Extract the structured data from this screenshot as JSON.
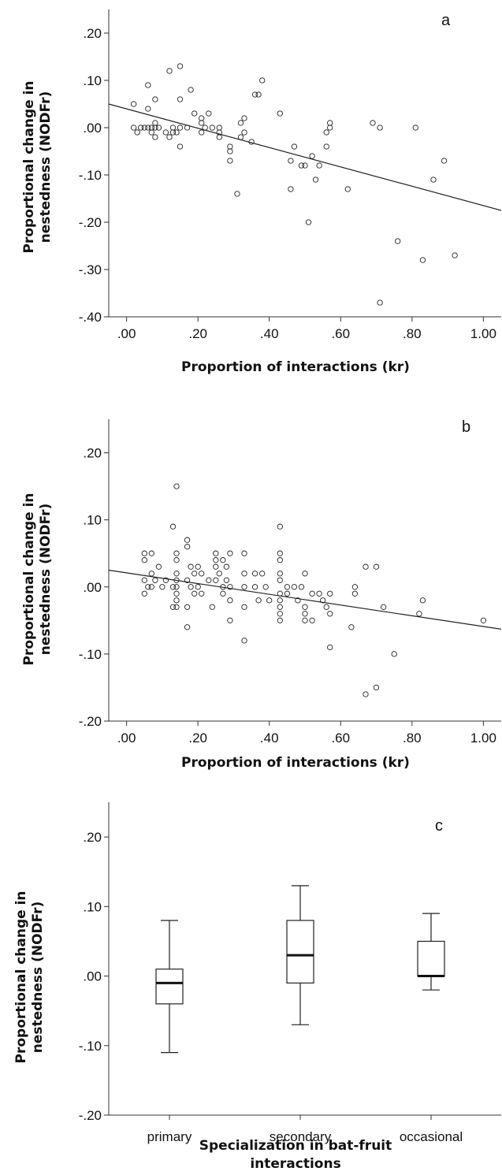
{
  "chart_data": [
    {
      "type": "scatter",
      "panel": "a",
      "xlabel": "Proportion of interactions (kr)",
      "ylabel": [
        "Proportional change in",
        "nestedness (NODFr)"
      ],
      "xlim": [
        -0.05,
        1.05
      ],
      "ylim": [
        -0.4,
        0.25
      ],
      "x_ticks": [
        {
          "v": 0.0,
          "label": ".00"
        },
        {
          "v": 0.2,
          "label": ".20"
        },
        {
          "v": 0.4,
          "label": ".40"
        },
        {
          "v": 0.6,
          "label": ".60"
        },
        {
          "v": 0.8,
          "label": ".80"
        },
        {
          "v": 1.0,
          "label": "1.00"
        }
      ],
      "y_ticks": [
        {
          "v": 0.2,
          "label": ".20"
        },
        {
          "v": 0.1,
          "label": ".10"
        },
        {
          "v": 0.0,
          "label": ".00"
        },
        {
          "v": -0.1,
          "label": "-.10"
        },
        {
          "v": -0.2,
          "label": "-.20"
        },
        {
          "v": -0.3,
          "label": "-.30"
        },
        {
          "v": -0.4,
          "label": "-.40"
        }
      ],
      "fit_line": {
        "x": [
          -0.05,
          1.05
        ],
        "y": [
          0.05,
          -0.175
        ]
      },
      "points": [
        [
          0.02,
          0.05
        ],
        [
          0.02,
          0.0
        ],
        [
          0.03,
          -0.01
        ],
        [
          0.04,
          0.0
        ],
        [
          0.05,
          0.0
        ],
        [
          0.06,
          0.09
        ],
        [
          0.06,
          0.04
        ],
        [
          0.06,
          0.0
        ],
        [
          0.07,
          0.0
        ],
        [
          0.07,
          -0.01
        ],
        [
          0.08,
          -0.02
        ],
        [
          0.08,
          0.01
        ],
        [
          0.08,
          0.06
        ],
        [
          0.08,
          0.0
        ],
        [
          0.09,
          0.0
        ],
        [
          0.11,
          -0.01
        ],
        [
          0.12,
          0.12
        ],
        [
          0.12,
          -0.02
        ],
        [
          0.13,
          -0.01
        ],
        [
          0.13,
          0.0
        ],
        [
          0.14,
          -0.01
        ],
        [
          0.15,
          0.13
        ],
        [
          0.15,
          0.06
        ],
        [
          0.15,
          0.0
        ],
        [
          0.15,
          -0.04
        ],
        [
          0.17,
          0.0
        ],
        [
          0.18,
          0.08
        ],
        [
          0.19,
          0.03
        ],
        [
          0.21,
          0.02
        ],
        [
          0.21,
          0.01
        ],
        [
          0.21,
          -0.01
        ],
        [
          0.22,
          0.0
        ],
        [
          0.23,
          0.03
        ],
        [
          0.24,
          0.0
        ],
        [
          0.26,
          0.0
        ],
        [
          0.26,
          -0.01
        ],
        [
          0.26,
          -0.02
        ],
        [
          0.29,
          -0.04
        ],
        [
          0.29,
          -0.05
        ],
        [
          0.29,
          -0.07
        ],
        [
          0.31,
          -0.14
        ],
        [
          0.32,
          -0.02
        ],
        [
          0.32,
          0.01
        ],
        [
          0.33,
          0.02
        ],
        [
          0.33,
          -0.01
        ],
        [
          0.35,
          -0.03
        ],
        [
          0.36,
          0.07
        ],
        [
          0.37,
          0.07
        ],
        [
          0.38,
          0.1
        ],
        [
          0.43,
          0.03
        ],
        [
          0.46,
          -0.07
        ],
        [
          0.46,
          -0.13
        ],
        [
          0.47,
          -0.04
        ],
        [
          0.49,
          -0.08
        ],
        [
          0.5,
          -0.08
        ],
        [
          0.51,
          -0.2
        ],
        [
          0.52,
          -0.06
        ],
        [
          0.53,
          -0.11
        ],
        [
          0.54,
          -0.08
        ],
        [
          0.56,
          -0.04
        ],
        [
          0.56,
          -0.01
        ],
        [
          0.57,
          0.0
        ],
        [
          0.57,
          0.01
        ],
        [
          0.62,
          -0.13
        ],
        [
          0.69,
          0.01
        ],
        [
          0.71,
          0.0
        ],
        [
          0.71,
          -0.37
        ],
        [
          0.76,
          -0.24
        ],
        [
          0.81,
          0.0
        ],
        [
          0.83,
          -0.28
        ],
        [
          0.86,
          -0.11
        ],
        [
          0.89,
          -0.07
        ],
        [
          0.92,
          -0.27
        ]
      ]
    },
    {
      "type": "scatter",
      "panel": "b",
      "xlabel": "Proportion of interactions (kr)",
      "ylabel": [
        "Proportional change in",
        "nestedness (NODFr)"
      ],
      "xlim": [
        -0.05,
        1.05
      ],
      "ylim": [
        -0.2,
        0.25
      ],
      "x_ticks": [
        {
          "v": 0.0,
          "label": ".00"
        },
        {
          "v": 0.2,
          "label": ".20"
        },
        {
          "v": 0.4,
          "label": ".40"
        },
        {
          "v": 0.6,
          "label": ".60"
        },
        {
          "v": 0.8,
          "label": ".80"
        },
        {
          "v": 1.0,
          "label": "1.00"
        }
      ],
      "y_ticks": [
        {
          "v": 0.2,
          "label": ".20"
        },
        {
          "v": 0.1,
          "label": ".10"
        },
        {
          "v": 0.0,
          "label": ".00"
        },
        {
          "v": -0.1,
          "label": "-.10"
        },
        {
          "v": -0.2,
          "label": "-.20"
        }
      ],
      "fit_line": {
        "x": [
          -0.05,
          1.05
        ],
        "y": [
          0.025,
          -0.063
        ]
      },
      "points": [
        [
          0.05,
          0.05
        ],
        [
          0.05,
          0.04
        ],
        [
          0.05,
          0.01
        ],
        [
          0.05,
          -0.01
        ],
        [
          0.06,
          0.0
        ],
        [
          0.07,
          0.05
        ],
        [
          0.07,
          0.02
        ],
        [
          0.07,
          0.0
        ],
        [
          0.08,
          0.01
        ],
        [
          0.09,
          0.03
        ],
        [
          0.1,
          0.0
        ],
        [
          0.11,
          0.01
        ],
        [
          0.13,
          0.09
        ],
        [
          0.13,
          0.0
        ],
        [
          0.13,
          -0.03
        ],
        [
          0.14,
          0.15
        ],
        [
          0.14,
          0.05
        ],
        [
          0.14,
          0.04
        ],
        [
          0.14,
          0.02
        ],
        [
          0.14,
          0.01
        ],
        [
          0.14,
          0.0
        ],
        [
          0.14,
          -0.01
        ],
        [
          0.14,
          -0.02
        ],
        [
          0.14,
          -0.03
        ],
        [
          0.17,
          0.07
        ],
        [
          0.17,
          0.06
        ],
        [
          0.17,
          0.01
        ],
        [
          0.17,
          -0.03
        ],
        [
          0.17,
          -0.06
        ],
        [
          0.18,
          0.03
        ],
        [
          0.18,
          0.0
        ],
        [
          0.19,
          0.02
        ],
        [
          0.19,
          -0.01
        ],
        [
          0.2,
          0.0
        ],
        [
          0.2,
          0.03
        ],
        [
          0.21,
          0.02
        ],
        [
          0.21,
          -0.01
        ],
        [
          0.23,
          0.01
        ],
        [
          0.24,
          -0.03
        ],
        [
          0.25,
          0.05
        ],
        [
          0.25,
          0.04
        ],
        [
          0.25,
          0.03
        ],
        [
          0.25,
          0.01
        ],
        [
          0.26,
          0.02
        ],
        [
          0.27,
          0.04
        ],
        [
          0.27,
          0.0
        ],
        [
          0.27,
          -0.01
        ],
        [
          0.28,
          0.03
        ],
        [
          0.28,
          0.01
        ],
        [
          0.29,
          0.05
        ],
        [
          0.29,
          0.0
        ],
        [
          0.29,
          -0.02
        ],
        [
          0.29,
          -0.05
        ],
        [
          0.33,
          0.05
        ],
        [
          0.33,
          0.02
        ],
        [
          0.33,
          0.0
        ],
        [
          0.33,
          -0.03
        ],
        [
          0.33,
          -0.08
        ],
        [
          0.36,
          0.02
        ],
        [
          0.36,
          0.0
        ],
        [
          0.37,
          -0.02
        ],
        [
          0.38,
          0.02
        ],
        [
          0.39,
          0.0
        ],
        [
          0.4,
          -0.02
        ],
        [
          0.43,
          0.09
        ],
        [
          0.43,
          0.05
        ],
        [
          0.43,
          0.04
        ],
        [
          0.43,
          0.02
        ],
        [
          0.43,
          0.01
        ],
        [
          0.43,
          -0.01
        ],
        [
          0.43,
          -0.02
        ],
        [
          0.43,
          -0.03
        ],
        [
          0.43,
          -0.04
        ],
        [
          0.43,
          -0.05
        ],
        [
          0.45,
          0.0
        ],
        [
          0.45,
          -0.01
        ],
        [
          0.47,
          0.0
        ],
        [
          0.48,
          -0.02
        ],
        [
          0.49,
          0.0
        ],
        [
          0.5,
          0.02
        ],
        [
          0.5,
          -0.03
        ],
        [
          0.5,
          -0.04
        ],
        [
          0.5,
          -0.05
        ],
        [
          0.52,
          -0.01
        ],
        [
          0.52,
          -0.05
        ],
        [
          0.54,
          -0.01
        ],
        [
          0.55,
          -0.02
        ],
        [
          0.56,
          -0.03
        ],
        [
          0.57,
          -0.01
        ],
        [
          0.57,
          -0.04
        ],
        [
          0.57,
          -0.09
        ],
        [
          0.63,
          -0.06
        ],
        [
          0.64,
          0.0
        ],
        [
          0.64,
          -0.01
        ],
        [
          0.67,
          0.03
        ],
        [
          0.67,
          -0.16
        ],
        [
          0.7,
          0.03
        ],
        [
          0.7,
          -0.15
        ],
        [
          0.72,
          -0.03
        ],
        [
          0.75,
          -0.1
        ],
        [
          0.82,
          -0.04
        ],
        [
          0.83,
          -0.02
        ],
        [
          1.0,
          -0.05
        ]
      ]
    },
    {
      "type": "box",
      "panel": "c",
      "xlabel": [
        "Specialization in bat-fruit",
        "interactions"
      ],
      "ylabel": [
        "Proportional change in",
        "nestedness (NODFr)"
      ],
      "ylim": [
        -0.2,
        0.25
      ],
      "y_ticks": [
        {
          "v": 0.2,
          "label": ".20"
        },
        {
          "v": 0.1,
          "label": ".10"
        },
        {
          "v": 0.0,
          "label": ".00"
        },
        {
          "v": -0.1,
          "label": "-.10"
        },
        {
          "v": -0.2,
          "label": "-.20"
        }
      ],
      "categories": [
        "primary",
        "secondary",
        "occasional"
      ],
      "boxes": [
        {
          "min": -0.11,
          "q1": -0.04,
          "median": -0.01,
          "q3": 0.01,
          "max": 0.08
        },
        {
          "min": -0.07,
          "q1": -0.01,
          "median": 0.03,
          "q3": 0.08,
          "max": 0.13
        },
        {
          "min": -0.02,
          "q1": 0.0,
          "median": 0.0,
          "q3": 0.05,
          "max": 0.09
        }
      ]
    }
  ]
}
